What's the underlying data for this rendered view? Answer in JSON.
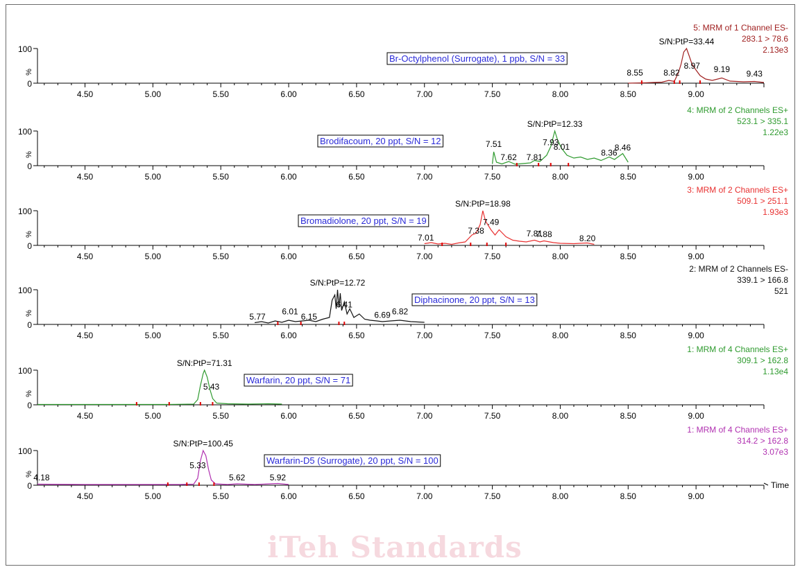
{
  "watermark": "iTeh Standards",
  "chart_data": {
    "type": "line",
    "x_axis_title": "Time",
    "x_tick_labels": [
      "4.50",
      "5.00",
      "5.50",
      "6.00",
      "6.50",
      "7.00",
      "7.50",
      "8.00",
      "8.50",
      "9.00"
    ],
    "xlim": [
      4.15,
      9.5
    ],
    "y_ticks": [
      0,
      100
    ],
    "y_unit": "%",
    "panels": [
      {
        "color": "#a02020",
        "channel": "5: MRM of 1 Channel ES-",
        "transition": "283.1 > 78.6",
        "intensity": "2.13e3",
        "sn_label": "S/N:PtP=33.44",
        "box_label": "Br-Octylphenol (Surrogate), 1 ppb, S/N = 33",
        "peak_labels": [
          {
            "text": "8.55",
            "x": 8.55,
            "y": 0.18
          },
          {
            "text": "8.82",
            "x": 8.82,
            "y": 0.18
          },
          {
            "text": "8.97",
            "x": 8.97,
            "y": 0.38
          },
          {
            "text": "9.19",
            "x": 9.19,
            "y": 0.28
          },
          {
            "text": "9.43",
            "x": 9.43,
            "y": 0.15
          }
        ],
        "trace": [
          [
            8.5,
            0
          ],
          [
            8.62,
            0.01
          ],
          [
            8.75,
            0.03
          ],
          [
            8.8,
            0.08
          ],
          [
            8.84,
            0.05
          ],
          [
            8.87,
            0.3
          ],
          [
            8.89,
            0.55
          ],
          [
            8.91,
            0.9
          ],
          [
            8.93,
            1.0
          ],
          [
            8.95,
            0.78
          ],
          [
            8.97,
            0.55
          ],
          [
            9.0,
            0.38
          ],
          [
            9.03,
            0.22
          ],
          [
            9.07,
            0.12
          ],
          [
            9.12,
            0.08
          ],
          [
            9.19,
            0.15
          ],
          [
            9.25,
            0.06
          ],
          [
            9.35,
            0.04
          ],
          [
            9.43,
            0.05
          ],
          [
            9.5,
            0.02
          ]
        ],
        "markers": [
          8.6,
          8.84,
          8.88,
          9.03
        ]
      },
      {
        "color": "#2e9a2e",
        "channel": "4: MRM of 2 Channels ES+",
        "transition": "523.1 > 335.1",
        "intensity": "1.22e3",
        "sn_label": "S/N:PtP=12.33",
        "box_label": "Brodifacoum, 20 ppt, S/N = 12",
        "peak_labels": [
          {
            "text": "7.51",
            "x": 7.51,
            "y": 0.5
          },
          {
            "text": "7.62",
            "x": 7.62,
            "y": 0.12
          },
          {
            "text": "7.81",
            "x": 7.81,
            "y": 0.12
          },
          {
            "text": "7.93",
            "x": 7.93,
            "y": 0.55
          },
          {
            "text": "8.01",
            "x": 8.01,
            "y": 0.42
          },
          {
            "text": "8.36",
            "x": 8.36,
            "y": 0.25
          },
          {
            "text": "8.46",
            "x": 8.46,
            "y": 0.4
          }
        ],
        "trace": [
          [
            7.5,
            0.05
          ],
          [
            7.51,
            0.4
          ],
          [
            7.53,
            0.1
          ],
          [
            7.57,
            0.05
          ],
          [
            7.62,
            0.12
          ],
          [
            7.67,
            0.04
          ],
          [
            7.72,
            0.06
          ],
          [
            7.78,
            0.08
          ],
          [
            7.81,
            0.15
          ],
          [
            7.85,
            0.12
          ],
          [
            7.9,
            0.3
          ],
          [
            7.93,
            0.55
          ],
          [
            7.96,
            1.0
          ],
          [
            7.98,
            0.75
          ],
          [
            8.01,
            0.5
          ],
          [
            8.05,
            0.3
          ],
          [
            8.1,
            0.22
          ],
          [
            8.15,
            0.25
          ],
          [
            8.2,
            0.18
          ],
          [
            8.25,
            0.22
          ],
          [
            8.3,
            0.15
          ],
          [
            8.36,
            0.25
          ],
          [
            8.4,
            0.18
          ],
          [
            8.46,
            0.35
          ],
          [
            8.5,
            0.1
          ]
        ],
        "markers": [
          7.68,
          7.84,
          7.93,
          8.06
        ]
      },
      {
        "color": "#e83030",
        "channel": "3: MRM of 2 Channels ES+",
        "transition": "509.1 > 251.1",
        "intensity": "1.93e3",
        "sn_label": "S/N:PtP=18.98",
        "box_label": "Bromadiolone, 20 ppt, S/N = 19",
        "peak_labels": [
          {
            "text": "7.01",
            "x": 7.01,
            "y": 0.1
          },
          {
            "text": "7.38",
            "x": 7.38,
            "y": 0.3
          },
          {
            "text": "7.49",
            "x": 7.49,
            "y": 0.55
          },
          {
            "text": "7.81",
            "x": 7.81,
            "y": 0.22
          },
          {
            "text": "7.88",
            "x": 7.88,
            "y": 0.2
          },
          {
            "text": "8.20",
            "x": 8.2,
            "y": 0.08
          }
        ],
        "trace": [
          [
            7.0,
            0.05
          ],
          [
            7.05,
            0.08
          ],
          [
            7.1,
            0.04
          ],
          [
            7.15,
            0.06
          ],
          [
            7.2,
            0.03
          ],
          [
            7.25,
            0.07
          ],
          [
            7.3,
            0.1
          ],
          [
            7.35,
            0.3
          ],
          [
            7.38,
            0.35
          ],
          [
            7.41,
            0.6
          ],
          [
            7.43,
            1.0
          ],
          [
            7.45,
            0.7
          ],
          [
            7.49,
            0.45
          ],
          [
            7.52,
            0.3
          ],
          [
            7.55,
            0.45
          ],
          [
            7.6,
            0.25
          ],
          [
            7.65,
            0.15
          ],
          [
            7.7,
            0.12
          ],
          [
            7.75,
            0.1
          ],
          [
            7.81,
            0.15
          ],
          [
            7.85,
            0.1
          ],
          [
            7.88,
            0.13
          ],
          [
            7.95,
            0.08
          ],
          [
            8.0,
            0.06
          ],
          [
            8.1,
            0.05
          ],
          [
            8.2,
            0.07
          ],
          [
            8.25,
            0.03
          ]
        ],
        "markers": [
          7.13,
          7.34,
          7.46,
          7.6
        ]
      },
      {
        "color": "#111111",
        "channel": "2: MRM of 2 Channels ES-",
        "transition": "339.1 > 166.8",
        "intensity": "521",
        "sn_label": "S/N:PtP=12.72",
        "box_label": "Diphacinone, 20 ppt, S/N = 13",
        "peak_labels": [
          {
            "text": "5.77",
            "x": 5.77,
            "y": 0.1
          },
          {
            "text": "6.01",
            "x": 6.01,
            "y": 0.25
          },
          {
            "text": "6.15",
            "x": 6.15,
            "y": 0.1
          },
          {
            "text": "6.41",
            "x": 6.41,
            "y": 0.45
          },
          {
            "text": "6.69",
            "x": 6.69,
            "y": 0.15
          },
          {
            "text": "6.82",
            "x": 6.82,
            "y": 0.25
          }
        ],
        "trace": [
          [
            5.75,
            0.05
          ],
          [
            5.8,
            0.08
          ],
          [
            5.85,
            0.04
          ],
          [
            5.9,
            0.1
          ],
          [
            5.95,
            0.06
          ],
          [
            6.0,
            0.12
          ],
          [
            6.05,
            0.08
          ],
          [
            6.1,
            0.1
          ],
          [
            6.15,
            0.12
          ],
          [
            6.2,
            0.08
          ],
          [
            6.25,
            0.15
          ],
          [
            6.3,
            0.2
          ],
          [
            6.32,
            0.7
          ],
          [
            6.34,
            0.85
          ],
          [
            6.35,
            0.45
          ],
          [
            6.36,
            1.0
          ],
          [
            6.37,
            0.5
          ],
          [
            6.38,
            0.9
          ],
          [
            6.39,
            0.4
          ],
          [
            6.41,
            0.65
          ],
          [
            6.43,
            0.3
          ],
          [
            6.45,
            0.45
          ],
          [
            6.48,
            0.2
          ],
          [
            6.52,
            0.3
          ],
          [
            6.56,
            0.15
          ],
          [
            6.6,
            0.12
          ],
          [
            6.65,
            0.1
          ],
          [
            6.69,
            0.08
          ],
          [
            6.75,
            0.1
          ],
          [
            6.82,
            0.12
          ],
          [
            6.9,
            0.08
          ],
          [
            7.0,
            0.06
          ]
        ],
        "markers": [
          5.92,
          6.09,
          6.37,
          6.41
        ]
      },
      {
        "color": "#2e9a2e",
        "channel": "1: MRM of 4 Channels ES+",
        "transition": "309.1 > 162.8",
        "intensity": "1.13e4",
        "sn_label": "S/N:PtP=71.31",
        "box_label": "Warfarin, 20 ppt, S/N = 71",
        "peak_labels": [
          {
            "text": "5.43",
            "x": 5.43,
            "y": 0.4
          }
        ],
        "trace": [
          [
            4.15,
            0.01
          ],
          [
            4.5,
            0.01
          ],
          [
            4.85,
            0.01
          ],
          [
            5.1,
            0.01
          ],
          [
            5.3,
            0.02
          ],
          [
            5.33,
            0.15
          ],
          [
            5.35,
            0.55
          ],
          [
            5.37,
            0.9
          ],
          [
            5.38,
            1.0
          ],
          [
            5.4,
            0.8
          ],
          [
            5.42,
            0.45
          ],
          [
            5.44,
            0.18
          ],
          [
            5.47,
            0.05
          ],
          [
            5.55,
            0.03
          ],
          [
            5.7,
            0.02
          ],
          [
            5.85,
            0.03
          ],
          [
            5.95,
            0.02
          ]
        ],
        "markers": [
          4.88,
          5.12,
          5.35,
          5.44
        ]
      },
      {
        "color": "#b030b0",
        "channel": "1: MRM of 4 Channels ES+",
        "transition": "314.2 > 162.8",
        "intensity": "3.07e3",
        "sn_label": "S/N:PtP=100.45",
        "box_label": "Warfarin-D5 (Surrogate), 20 ppt, S/N = 100",
        "peak_labels": [
          {
            "text": "4.18",
            "x": 4.18,
            "y": 0.1
          },
          {
            "text": "5.33",
            "x": 5.33,
            "y": 0.45
          },
          {
            "text": "5.62",
            "x": 5.62,
            "y": 0.1
          },
          {
            "text": "5.92",
            "x": 5.92,
            "y": 0.1
          }
        ],
        "trace": [
          [
            4.15,
            0.03
          ],
          [
            4.5,
            0.02
          ],
          [
            4.9,
            0.02
          ],
          [
            5.2,
            0.02
          ],
          [
            5.3,
            0.03
          ],
          [
            5.33,
            0.2
          ],
          [
            5.35,
            0.7
          ],
          [
            5.37,
            1.0
          ],
          [
            5.39,
            0.85
          ],
          [
            5.41,
            0.45
          ],
          [
            5.43,
            0.15
          ],
          [
            5.46,
            0.04
          ],
          [
            5.55,
            0.02
          ],
          [
            5.62,
            0.04
          ],
          [
            5.75,
            0.02
          ],
          [
            5.92,
            0.05
          ],
          [
            6.0,
            0.02
          ]
        ],
        "markers": [
          5.11,
          5.25,
          5.34,
          5.45
        ]
      }
    ]
  }
}
